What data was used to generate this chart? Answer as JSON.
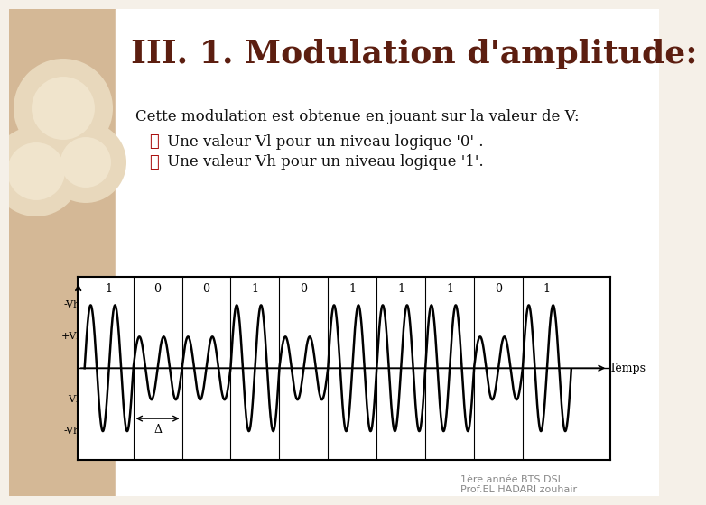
{
  "title": "III. 1. Modulation d'amplitude:",
  "title_color": "#5C1E10",
  "title_fontsize": 26,
  "title_fontweight": "bold",
  "sidebar_color": "#D4B896",
  "main_bg": "#F5F0E8",
  "white_bg": "#FFFFFF",
  "text_line1": "Cette modulation est obtenue en jouant sur la valeur de V:",
  "bullet1": "✖ Une valeur Vl pour un niveau logique '0' .",
  "bullet2": "✖ Une valeur Vh pour un niveau logique '1'.",
  "bullet_x": "✖",
  "bullet1_text": " Une valeur Vl pour un niveau logique '0' .",
  "bullet2_text": " Une valeur Vh pour un niveau logique '1'.",
  "bullet_color": "#AA1111",
  "text_color": "#111111",
  "text_fontsize": 12,
  "bits": [
    1,
    0,
    0,
    1,
    0,
    1,
    1,
    1,
    0,
    1
  ],
  "Vh": 1.0,
  "Vl": 0.5,
  "carrier_freq": 2,
  "samples_per_bit": 600,
  "footer_text1": "1ère année BTS DSI",
  "footer_text2": "Prof.EL HADARI zouhair",
  "footer_color": "#888888",
  "footer_fontsize": 8,
  "graph_label_Temps": "Temps",
  "graph_label_mVh_top": "-Vh",
  "graph_label_pVl": "+Vl",
  "graph_label_mVl": "-Vl",
  "graph_label_mVh_bot": "-Vh",
  "graph_label_delta": "Δ",
  "box_shadow_color": "#333333",
  "graph_fontsize": 8
}
